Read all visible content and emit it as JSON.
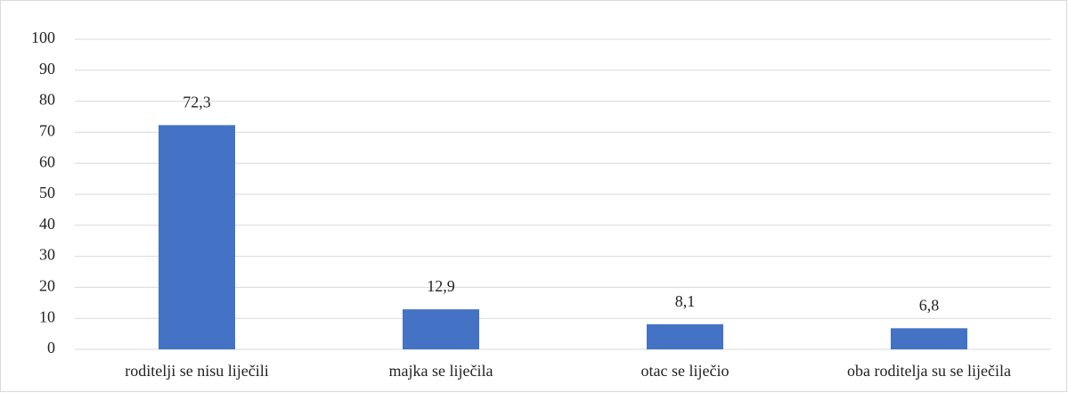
{
  "chart_data": {
    "type": "bar",
    "categories": [
      "roditelji se nisu liječili",
      "majka se liječila",
      "otac se liječio",
      "oba roditelja su se liječila"
    ],
    "values": [
      72.3,
      12.9,
      8.1,
      6.8
    ],
    "value_labels": [
      "72,3",
      "12,9",
      "8,1",
      "6,8"
    ],
    "color": "#4472c4",
    "ylim": [
      0,
      100
    ],
    "yticks": [
      0,
      10,
      20,
      30,
      40,
      50,
      60,
      70,
      80,
      90,
      100
    ],
    "grid": true
  }
}
